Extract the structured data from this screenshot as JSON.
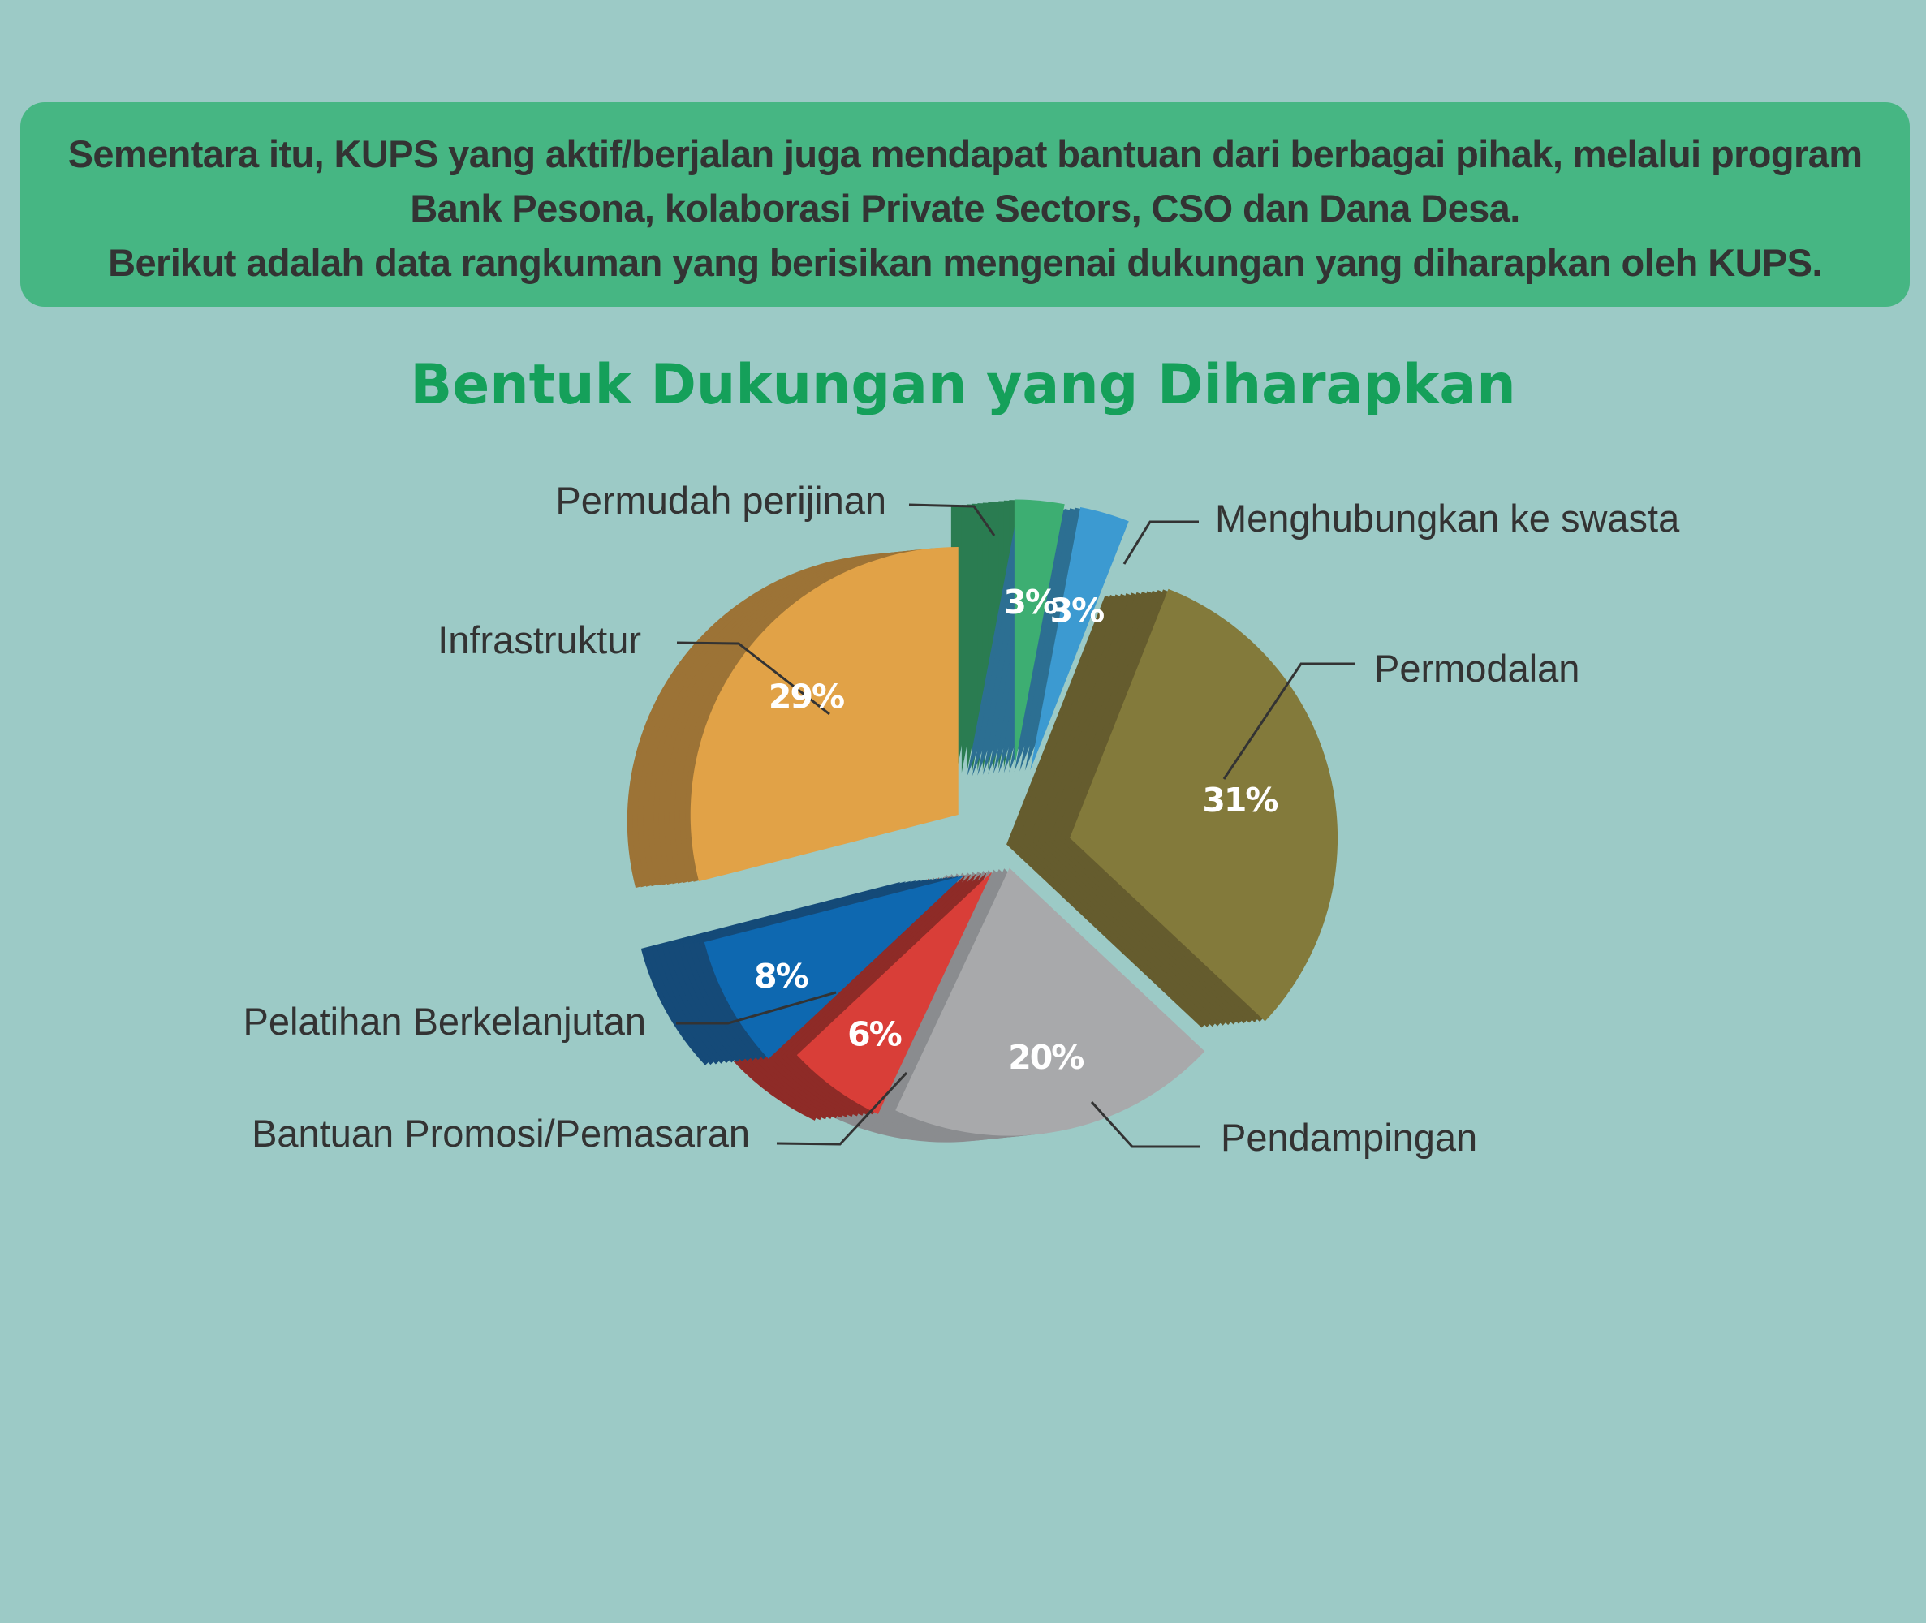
{
  "intro": {
    "line1": "Sementara itu, KUPS yang aktif/berjalan juga mendapat bantuan dari berbagai pihak, melalui program",
    "line2": "Bank Pesona, kolaborasi Private Sectors, CSO dan Dana Desa.",
    "line3": "Berikut adalah data rangkuman yang berisikan mengenai dukungan yang diharapkan oleh KUPS."
  },
  "chart_data": {
    "type": "pie",
    "title": "Bentuk Dukungan yang Diharapkan",
    "slices": [
      {
        "label": "Permudah perijinan",
        "value": 3,
        "value_label": "3%",
        "color": "#3dae72",
        "side_color": "#2a7c51"
      },
      {
        "label": "Menghubungkan ke swasta",
        "value": 3,
        "value_label": "3%",
        "color": "#3c9ad1",
        "side_color": "#2c6f92"
      },
      {
        "label": "Permodalan",
        "value": 31,
        "value_label": "31%",
        "color": "#837a3b",
        "side_color": "#655c2e"
      },
      {
        "label": "Pendampingan",
        "value": 20,
        "value_label": "20%",
        "color": "#a8a9ab",
        "side_color": "#8a8c8f"
      },
      {
        "label": "Bantuan Promosi/Pemasaran",
        "value": 6,
        "value_label": "6%",
        "color": "#d93e38",
        "side_color": "#8e2b27"
      },
      {
        "label": "Pelatihan Berkelanjutan",
        "value": 8,
        "value_label": "8%",
        "color": "#0e68b0",
        "side_color": "#154a78"
      },
      {
        "label": "Infrastruktur",
        "value": 29,
        "value_label": "29%",
        "color": "#e1a247",
        "side_color": "#9c7336"
      }
    ],
    "legend": "none",
    "style": "3d-exploded"
  }
}
